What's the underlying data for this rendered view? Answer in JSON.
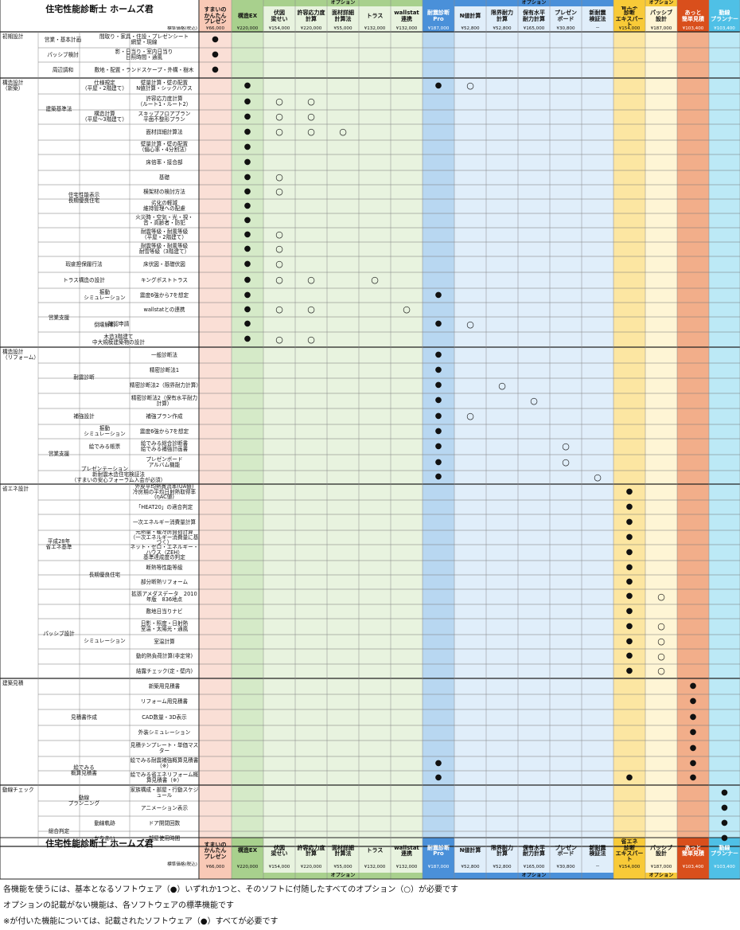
{
  "title": "住宅性能診断士 ホームズ君",
  "price_label": "標準価格(税込)",
  "option_label": "オプション",
  "products": [
    {
      "name": "すまいの\nかんたん\nプレゼン",
      "price": "¥66,000"
    },
    {
      "name": "構造EX",
      "price": "¥220,000"
    },
    {
      "name": "伏図\n梁せい",
      "price": "¥154,000"
    },
    {
      "name": "許容応力度\n計算",
      "price": "¥220,000"
    },
    {
      "name": "面材詳細\n計算法",
      "price": "¥55,000"
    },
    {
      "name": "トラス",
      "price": "¥132,000"
    },
    {
      "name": "wallstat\n連携",
      "price": "¥132,000"
    },
    {
      "name": "耐震診断\nPro",
      "price": "¥187,000"
    },
    {
      "name": "N値計算",
      "price": "¥52,800"
    },
    {
      "name": "限界耐力\n計算",
      "price": "¥52,800"
    },
    {
      "name": "保有水平\n耐力計算",
      "price": "¥165,000"
    },
    {
      "name": "プレゼン\nボード",
      "price": "¥30,800"
    },
    {
      "name": "新耐震\n検証法",
      "price": "－"
    },
    {
      "name": "省エネ\n診断\nエキスパート",
      "price": "¥154,000"
    },
    {
      "name": "パッシブ\n設計",
      "price": "¥187,000"
    },
    {
      "name": "あっと\n簡単見積",
      "price": "¥103,400"
    },
    {
      "name": "動線\nプランナー",
      "price": "¥103,400"
    }
  ],
  "rows": [
    {
      "c1": "初期設計",
      "c2": "営業・基本計画",
      "c4": "間取り・家具・住設・プレゼンシート\n網望・現線",
      "m": "0"
    },
    {
      "c2": "パッシブ検討",
      "c4": "影・日当り・室内日当り\n日照時間・通風",
      "m": "0"
    },
    {
      "c2": "周辺調和",
      "c4": "敷地・配置・ランドスケープ・外構・樹木",
      "m": "0"
    },
    {
      "c1": "構造設計\n（新築）",
      "c2": "建築基準法",
      "c3": "仕様規定\n（平屋・2階建て）",
      "c4": "壁量計算・壁の配置\nN値計算・シックハウス",
      "m": "1,7,8o"
    },
    {
      "c3": "構造計算\n（平屋～3階建て）",
      "c4": "許容応力度計算\n（ルート1・ルート2）",
      "m": "1,2o,3o"
    },
    {
      "c4": "スキップフロアプラン\n平面不整形プラン",
      "m": "1,2o,3o"
    },
    {
      "c4": "面材詳細計算法",
      "m": "1,2o,3o,4o"
    },
    {
      "c2": "住宅性能表示\n長期優良住宅",
      "c4": "壁量計算・壁の配置\n（偏心率・4分割法）",
      "m": "1"
    },
    {
      "c4": "床倍率・接合部",
      "m": "1"
    },
    {
      "c4": "基礎",
      "m": "1,2o"
    },
    {
      "c4": "横架材の検討方法",
      "m": "1,2o"
    },
    {
      "c4": "劣化の軽減\n維持管理への配慮",
      "m": "1"
    },
    {
      "c4": "火災時・空気・光・視・\n音・高齢者・防犯",
      "m": "1"
    },
    {
      "c4": "耐震等級・耐風等級\n（平屋・2階建て）",
      "m": "1,2o"
    },
    {
      "c4": "耐震等級・耐風等級\n耐雪等級（3階建て）",
      "m": "1,2o"
    },
    {
      "c2": "瑕疵担保履行法",
      "c4": "床伏図・基礎伏図",
      "m": "1,2o"
    },
    {
      "c2": "トラス構造の設計",
      "c4": "キングポストトラス",
      "m": "1,2o,3o,5o"
    },
    {
      "c2": "営業支援",
      "c3": "振動\nシミュレーション",
      "c4": "震度6強から7を想定",
      "m": "1,7"
    },
    {
      "c3": "倒壊解析",
      "c4": "wallstatとの連携",
      "m": "1,2o,3o,6o"
    },
    {
      "c4": "確認申請",
      "m": "1,7,8o"
    },
    {
      "c4": "木造3階建て\n中大規模建築物の設計",
      "m": "1,2o,3o"
    },
    {
      "c1": "構造設計\n（リフォーム）",
      "c2": "耐震診断",
      "c4": "一般診断法",
      "m": "7"
    },
    {
      "c4": "精密診断法1",
      "m": "7"
    },
    {
      "c4": "精密診断法2（限界耐力計算）",
      "m": "7,9o"
    },
    {
      "c4": "精密診断法2（保有水平耐力計算）",
      "m": "7,10o"
    },
    {
      "c2": "補強設計",
      "c4": "補強プラン作成",
      "m": "7,8o"
    },
    {
      "c2": "営業支援",
      "c3": "振動\nシミュレーション",
      "c4": "震度6強から7を想定",
      "m": "7"
    },
    {
      "c3": "絵でみる帳票",
      "c4": "絵でみる総合診断書\n絵でみる補強計画書",
      "m": "7,11o"
    },
    {
      "c3": "プレゼンテーション",
      "c4": "プレゼンボード\nアルバム機能",
      "m": "7,11o"
    },
    {
      "c4": "新耐震木造住宅検証法\n（すまいの安心フォーラム入会が必須）",
      "m": "7,12o"
    },
    {
      "c1": "省エネ設計",
      "c4": "外皮平均熱貫流率(UA値)\n冷房期の平均日射熱取得率(ηAC値)",
      "m": "13"
    },
    {
      "c2": "平成28年\n省エネ基準",
      "c4": "「HEAT20」の適合判定",
      "m": "13"
    },
    {
      "c4": "一次エネルギー消費量計算",
      "m": "13"
    },
    {
      "c4": "元熱量・暖冷房負荷計算\n（一次エネルギー消費量に基づく）",
      "m": "13"
    },
    {
      "c4": "ネット・ゼロ・エネルギー・ハウス（ZEH）\n基準達成度の判定",
      "m": "13"
    },
    {
      "c3": "長期優良住宅",
      "c4": "断熱等性能等級",
      "m": "13"
    },
    {
      "c4": "部分断熱リフォーム",
      "m": "13"
    },
    {
      "c2": "パッシブ設計",
      "c4": "拡張アメダスデータ　2010年版　836地点",
      "m": "13,14o"
    },
    {
      "c3": "シミュレーション",
      "c4": "敷地日当りナビ",
      "m": "13"
    },
    {
      "c4": "日影・照度・日射熱\n室温・太陽光・通風",
      "m": "13,14o"
    },
    {
      "c4": "室温計算",
      "m": "13,14o"
    },
    {
      "c4": "動的熱負荷計算(非定常)",
      "m": "13,14o"
    },
    {
      "c4": "結露チェック(定・壁内)",
      "m": "13,14o"
    },
    {
      "c1": "建築見積",
      "c2": "見積書作成",
      "c4": "新築用見積書",
      "m": "15"
    },
    {
      "c4": "リフォーム用見積書",
      "m": "15"
    },
    {
      "c4": "CAD数量・3D表示",
      "m": "15"
    },
    {
      "c4": "外装シミュレーション",
      "m": "15"
    },
    {
      "c4": "見積テンプレート・単価マスター",
      "m": "15"
    },
    {
      "c2": "絵でみる\n概算見積書",
      "c4": "絵でみる耐震補強概算見積書（※）",
      "m": "7,15"
    },
    {
      "c4": "絵でみる省エネリフォーム概算見積書（※）",
      "m": "7,13,15"
    },
    {
      "c1": "動線チェック",
      "c2": "動線\nプランニング",
      "c4": "家族構成・部屋・行動スケジュール",
      "m": "16"
    },
    {
      "c4": "アニメーション表示",
      "m": "16"
    },
    {
      "c2": "総合判定",
      "c3": "動線軌跡",
      "c4": "ドア開閉回数",
      "m": "16"
    },
    {
      "c3": "かちあい",
      "c4": "部屋使用時間",
      "m": "16"
    }
  ],
  "notes": [
    "各機能を使うには、基本となるソフトウェア（●）いずれか1つと、そのソフトに付随したすべてのオプション（○）が必要です",
    "オプションの記載がない機能は、各ソフトウェアの標準機能です",
    "※が付いた機能については、記載されたソフトウェア（●）すべてが必要です"
  ],
  "marks": {
    "filled": "●",
    "empty": "○"
  },
  "colors": {
    "pink": "#fadfd6",
    "green": "#d5eac8",
    "green_light": "#e8f3df",
    "blue": "#b8d7f1",
    "blue_light": "#e0eefa",
    "yellow": "#fce6a2",
    "yellow_light": "#fef5d5",
    "orange": "#f2ae8a",
    "orange_light": "#fbdccc",
    "cyan": "#bce9f6",
    "cyan_light": "#e3f6fb",
    "red_head": "#d94f1c",
    "blue_head": "#4a90d9",
    "cyan_head": "#4fc0e6",
    "yellow_head": "#f8ca38",
    "green_head": "#a8d08d",
    "pink_head": "#f8c9b6"
  }
}
